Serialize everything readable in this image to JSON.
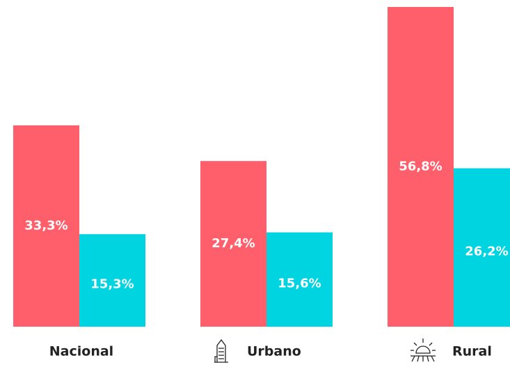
{
  "chart_data": {
    "type": "bar",
    "categories": [
      "Nacional",
      "Urbano",
      "Rural"
    ],
    "series": [
      {
        "color": "#ff5f6a",
        "values": [
          33.3,
          27.4,
          56.8
        ],
        "value_labels": [
          "33,3%",
          "27,4%",
          "56,8%"
        ]
      },
      {
        "color": "#00d4e0",
        "values": [
          15.3,
          15.6,
          26.2
        ],
        "value_labels": [
          "15,3%",
          "15,6%",
          "26,2%"
        ]
      }
    ]
  }
}
